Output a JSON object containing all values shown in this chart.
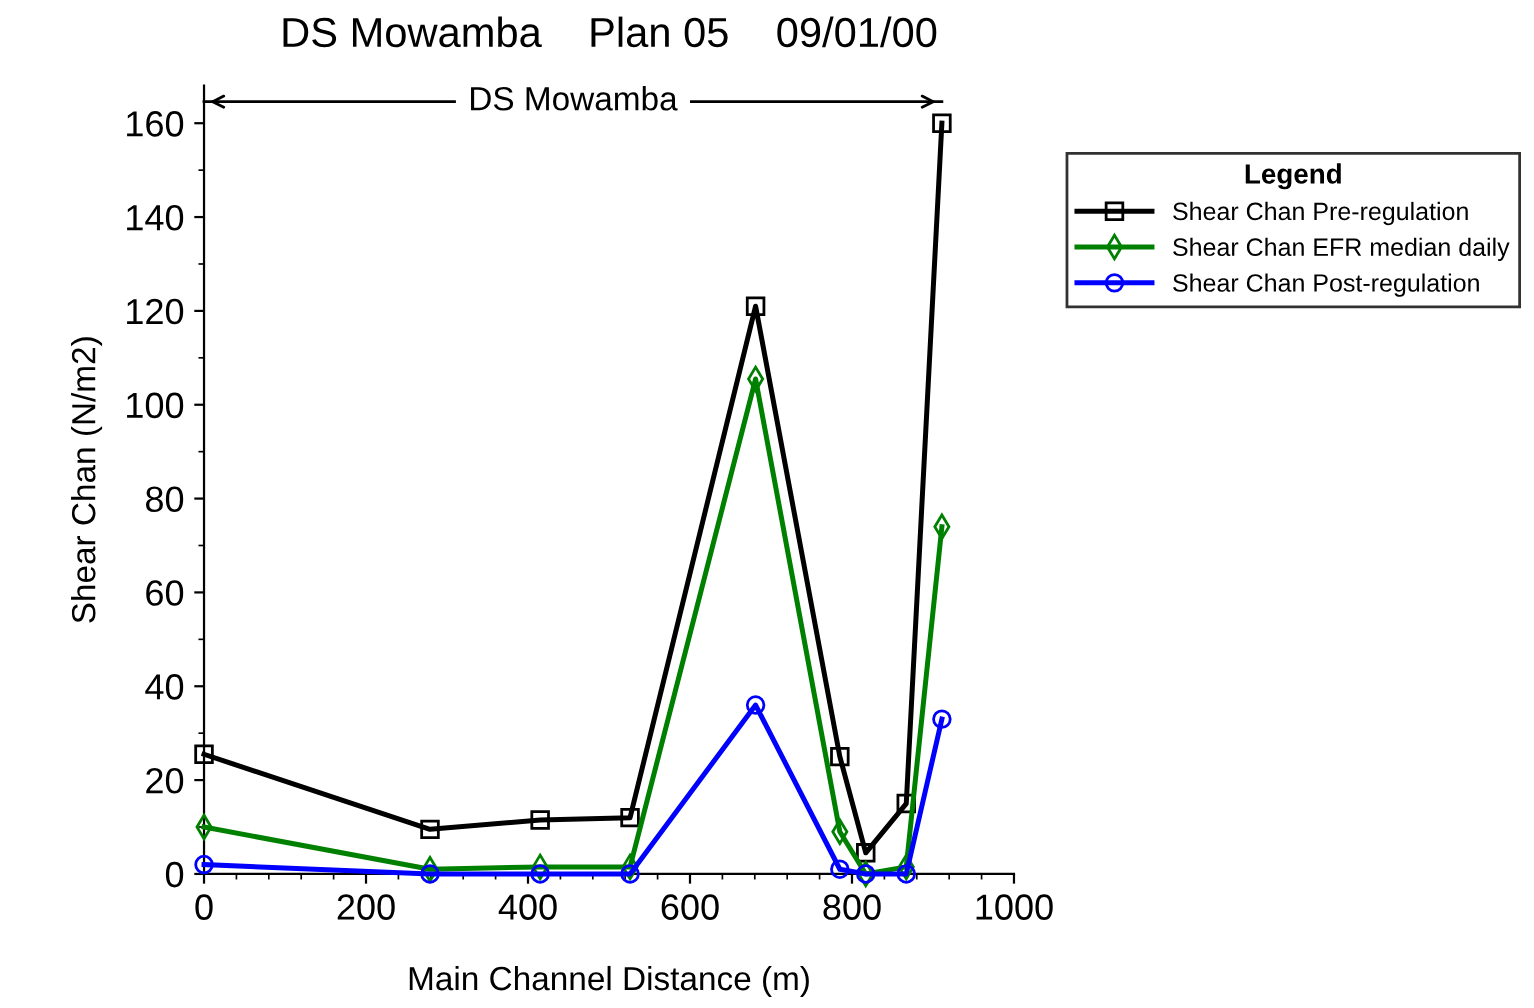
{
  "chart_data": {
    "type": "line",
    "title": "DS Mowamba    Plan 05    09/01/00",
    "xlabel": "Main Channel Distance (m)",
    "ylabel": "Shear Chan (N/m2)",
    "legend_title": "Legend",
    "legend": "right",
    "annotations": [
      "DS Mowamba"
    ],
    "x": [
      0,
      279,
      415,
      526,
      681,
      785,
      817,
      867,
      911
    ],
    "series": [
      {
        "name": "Shear Chan Pre-regulation",
        "color": "#000000",
        "marker": "square",
        "values": [
          25.5,
          9.5,
          11.5,
          12,
          121,
          25,
          4.5,
          15,
          160
        ]
      },
      {
        "name": "Shear Chan EFR median daily",
        "color": "#008000",
        "marker": "diamond",
        "values": [
          10,
          1,
          1.5,
          1.5,
          105.5,
          9,
          0,
          1.5,
          74
        ]
      },
      {
        "name": "Shear Chan Post-regulation",
        "color": "#0000ff",
        "marker": "circle",
        "values": [
          2,
          0,
          0,
          0,
          36,
          1,
          0,
          0,
          33
        ]
      },
      {
        "type": "line",
        "color": "#000000",
        "marker": "none",
        "x": [
          0,
          911
        ],
        "values": [
          164.6,
          164.6
        ]
      }
    ],
    "xlim": [
      0,
      1000
    ],
    "xticks": [
      0,
      200,
      400,
      600,
      800,
      1000
    ],
    "ylim": [
      0,
      168
    ],
    "yticks": [
      0,
      20,
      40,
      60,
      80,
      100,
      120,
      140,
      160
    ],
    "grid": false
  }
}
